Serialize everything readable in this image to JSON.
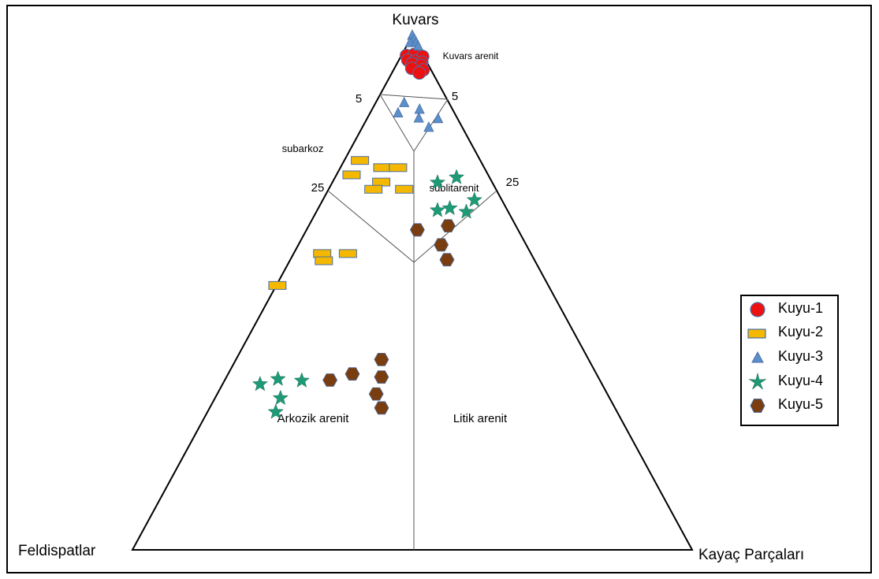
{
  "chart_data": {
    "type": "ternary",
    "vertices": {
      "top": "Kuvars",
      "left": "Feldispatlar",
      "right": "Kayaç Parçaları"
    },
    "field_labels": {
      "kuvars_arenit": "Kuvars arenit",
      "subarkoz": "subarkoz",
      "sublitarenit": "sublitarenit",
      "arkozik_arenit": "Arkozik arenit",
      "litik_arenit": "Litik arenit"
    },
    "tick_labels": {
      "left_5": "5",
      "right_5": "5",
      "left_25": "25",
      "right_25": "25"
    },
    "axis_unit": "percent",
    "colors": {
      "Kuyu-1": "#ee1111",
      "Kuyu-2": "#f5b800",
      "Kuyu-3": "#5b8fc9",
      "Kuyu-4": "#1e9a76",
      "Kuyu-5": "#7a3d10"
    },
    "series": [
      {
        "name": "Kuyu-1",
        "marker": "circle",
        "points": [
          {
            "Q": 96.1,
            "F": 3.0,
            "R": 0.9
          },
          {
            "Q": 96.3,
            "F": 1.5,
            "R": 2.2
          },
          {
            "Q": 95.9,
            "F": 0.2,
            "R": 3.9
          },
          {
            "Q": 95.2,
            "F": 3.2,
            "R": 1.6
          },
          {
            "Q": 95.0,
            "F": 2.1,
            "R": 2.9
          },
          {
            "Q": 94.8,
            "F": 0.9,
            "R": 4.3
          },
          {
            "Q": 94.5,
            "F": 2.8,
            "R": 2.7
          },
          {
            "Q": 94.2,
            "F": 1.3,
            "R": 4.5
          },
          {
            "Q": 93.6,
            "F": 3.3,
            "R": 3.1
          },
          {
            "Q": 93.3,
            "F": 1.4,
            "R": 5.3
          },
          {
            "Q": 92.7,
            "F": 2.4,
            "R": 4.9
          }
        ]
      },
      {
        "name": "Kuyu-2",
        "marker": "rectangle",
        "points": [
          {
            "Q": 75.7,
            "F": 21.5,
            "R": 2.8
          },
          {
            "Q": 74.3,
            "F": 18.2,
            "R": 7.5
          },
          {
            "Q": 74.3,
            "F": 15.4,
            "R": 10.3
          },
          {
            "Q": 72.9,
            "F": 24.4,
            "R": 2.7
          },
          {
            "Q": 71.5,
            "F": 19.8,
            "R": 8.7
          },
          {
            "Q": 70.1,
            "F": 21.9,
            "R": 8.0
          },
          {
            "Q": 70.1,
            "F": 16.4,
            "R": 13.5
          },
          {
            "Q": 57.6,
            "F": 37.3,
            "R": 5.1
          },
          {
            "Q": 57.6,
            "F": 32.7,
            "R": 9.7
          },
          {
            "Q": 56.2,
            "F": 37.7,
            "R": 6.1
          },
          {
            "Q": 51.4,
            "F": 48.4,
            "R": 0.2
          }
        ]
      },
      {
        "name": "Kuyu-3",
        "marker": "triangle",
        "points": [
          {
            "Q": 100.0,
            "F": 0.0,
            "R": 0.0
          },
          {
            "Q": 99.3,
            "F": 0.0,
            "R": 0.7
          },
          {
            "Q": 99.0,
            "F": 1.4,
            "R": 0.0
          },
          {
            "Q": 98.6,
            "F": 0.0,
            "R": 1.4
          },
          {
            "Q": 97.9,
            "F": 0.0,
            "R": 2.1
          },
          {
            "Q": 86.9,
            "F": 8.0,
            "R": 5.1
          },
          {
            "Q": 85.6,
            "F": 5.9,
            "R": 8.5
          },
          {
            "Q": 84.9,
            "F": 10.1,
            "R": 5.0
          },
          {
            "Q": 83.9,
            "F": 6.9,
            "R": 9.2
          },
          {
            "Q": 83.8,
            "F": 3.5,
            "R": 12.7
          },
          {
            "Q": 82.1,
            "F": 6.0,
            "R": 11.9
          }
        ]
      },
      {
        "name": "Kuyu-4",
        "marker": "star",
        "points": [
          {
            "Q": 72.4,
            "F": 5.9,
            "R": 21.7
          },
          {
            "Q": 71.4,
            "F": 9.8,
            "R": 18.8
          },
          {
            "Q": 68.0,
            "F": 4.9,
            "R": 27.1
          },
          {
            "Q": 66.4,
            "F": 10.1,
            "R": 23.5
          },
          {
            "Q": 66.0,
            "F": 12.5,
            "R": 21.5
          },
          {
            "Q": 65.7,
            "F": 7.5,
            "R": 26.8
          },
          {
            "Q": 33.2,
            "F": 57.4,
            "R": 9.4
          },
          {
            "Q": 32.9,
            "F": 53.3,
            "R": 13.8
          },
          {
            "Q": 32.2,
            "F": 61.1,
            "R": 6.7
          },
          {
            "Q": 29.5,
            "F": 58.8,
            "R": 11.7
          },
          {
            "Q": 26.8,
            "F": 61.0,
            "R": 12.2
          }
        ]
      },
      {
        "name": "Kuyu-5",
        "marker": "hexagon",
        "points": [
          {
            "Q": 63.0,
            "F": 12.1,
            "R": 24.9
          },
          {
            "Q": 62.2,
            "F": 18.0,
            "R": 19.8
          },
          {
            "Q": 59.3,
            "F": 15.2,
            "R": 25.5
          },
          {
            "Q": 56.4,
            "F": 15.6,
            "R": 28.0
          },
          {
            "Q": 37.0,
            "F": 37.0,
            "R": 26.0
          },
          {
            "Q": 34.2,
            "F": 43.6,
            "R": 22.2
          },
          {
            "Q": 33.6,
            "F": 38.7,
            "R": 27.7
          },
          {
            "Q": 33.0,
            "F": 48.2,
            "R": 18.8
          },
          {
            "Q": 30.3,
            "F": 41.3,
            "R": 28.4
          },
          {
            "Q": 27.6,
            "F": 41.7,
            "R": 30.7
          }
        ]
      }
    ],
    "legend": {
      "position": "right",
      "entries": [
        "Kuyu-1",
        "Kuyu-2",
        "Kuyu-3",
        "Kuyu-4",
        "Kuyu-5"
      ]
    }
  }
}
